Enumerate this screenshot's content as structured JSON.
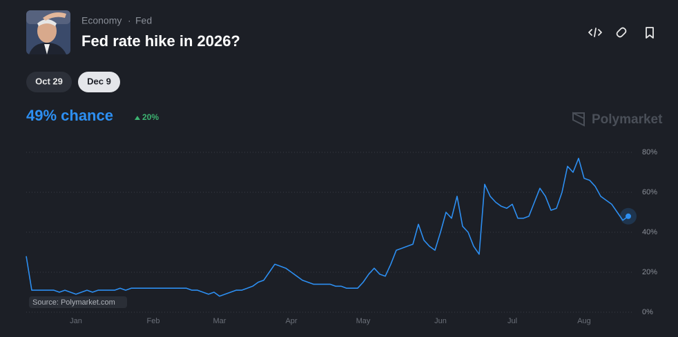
{
  "header": {
    "category": "Economy",
    "separator": "·",
    "tag": "Fed",
    "title": "Fed rate hike in 2026?"
  },
  "date_buttons": [
    "Oct 29",
    "Dec 9"
  ],
  "chance": {
    "label": "49% chance",
    "change": "20%"
  },
  "brand": "Polymarket",
  "chart_data": {
    "type": "line",
    "source": "Source: Polymarket.com",
    "color": "#2d8ff2",
    "categories": [
      null,
      null,
      null,
      null,
      null,
      null,
      null,
      null,
      null,
      "Jan",
      null,
      null,
      null,
      null,
      null,
      null,
      null,
      null,
      null,
      null,
      null,
      null,
      null,
      "Feb",
      null,
      null,
      null,
      null,
      null,
      null,
      null,
      null,
      null,
      null,
      null,
      "Mar",
      null,
      null,
      null,
      null,
      null,
      null,
      null,
      null,
      null,
      null,
      null,
      null,
      "Apr",
      null,
      null,
      null,
      null,
      null,
      null,
      null,
      null,
      null,
      null,
      null,
      null,
      "May",
      null,
      null,
      null,
      null,
      null,
      null,
      null,
      null,
      null,
      null,
      null,
      null,
      null,
      "Jun",
      null,
      null,
      null,
      null,
      null,
      null,
      null,
      null,
      null,
      null,
      null,
      null,
      "Jul",
      null,
      null,
      null,
      null,
      null,
      null,
      null,
      null,
      null,
      null,
      null,
      null,
      "Aug",
      null,
      null,
      null,
      null,
      null,
      null,
      null,
      null
    ],
    "values": [
      28,
      11,
      11,
      11,
      11,
      11,
      10,
      11,
      10,
      9,
      10,
      11,
      10,
      11,
      11,
      11,
      11,
      12,
      11,
      12,
      12,
      12,
      12,
      12,
      12,
      12,
      12,
      12,
      12,
      12,
      11,
      11,
      10,
      9,
      10,
      8,
      9,
      10,
      11,
      11,
      12,
      13,
      15,
      16,
      20,
      24,
      23,
      22,
      20,
      18,
      16,
      15,
      14,
      14,
      14,
      14,
      13,
      13,
      12,
      12,
      12,
      15,
      19,
      22,
      19,
      18,
      24,
      31,
      32,
      33,
      34,
      44,
      36,
      33,
      31,
      40,
      50,
      47,
      58,
      43,
      40,
      33,
      29,
      64,
      58,
      55,
      53,
      52,
      54,
      47,
      47,
      48,
      55,
      62,
      58,
      51,
      52,
      60,
      73,
      70,
      77,
      67,
      66,
      63,
      58,
      56,
      54,
      50,
      46,
      48
    ],
    "ylim": [
      0,
      80
    ],
    "yticks": [
      {
        "value": 0,
        "label": "0%"
      },
      {
        "value": 20,
        "label": "20%"
      },
      {
        "value": 40,
        "label": "40%"
      },
      {
        "value": 60,
        "label": "60%"
      },
      {
        "value": 80,
        "label": "80%"
      }
    ],
    "grid": true
  }
}
